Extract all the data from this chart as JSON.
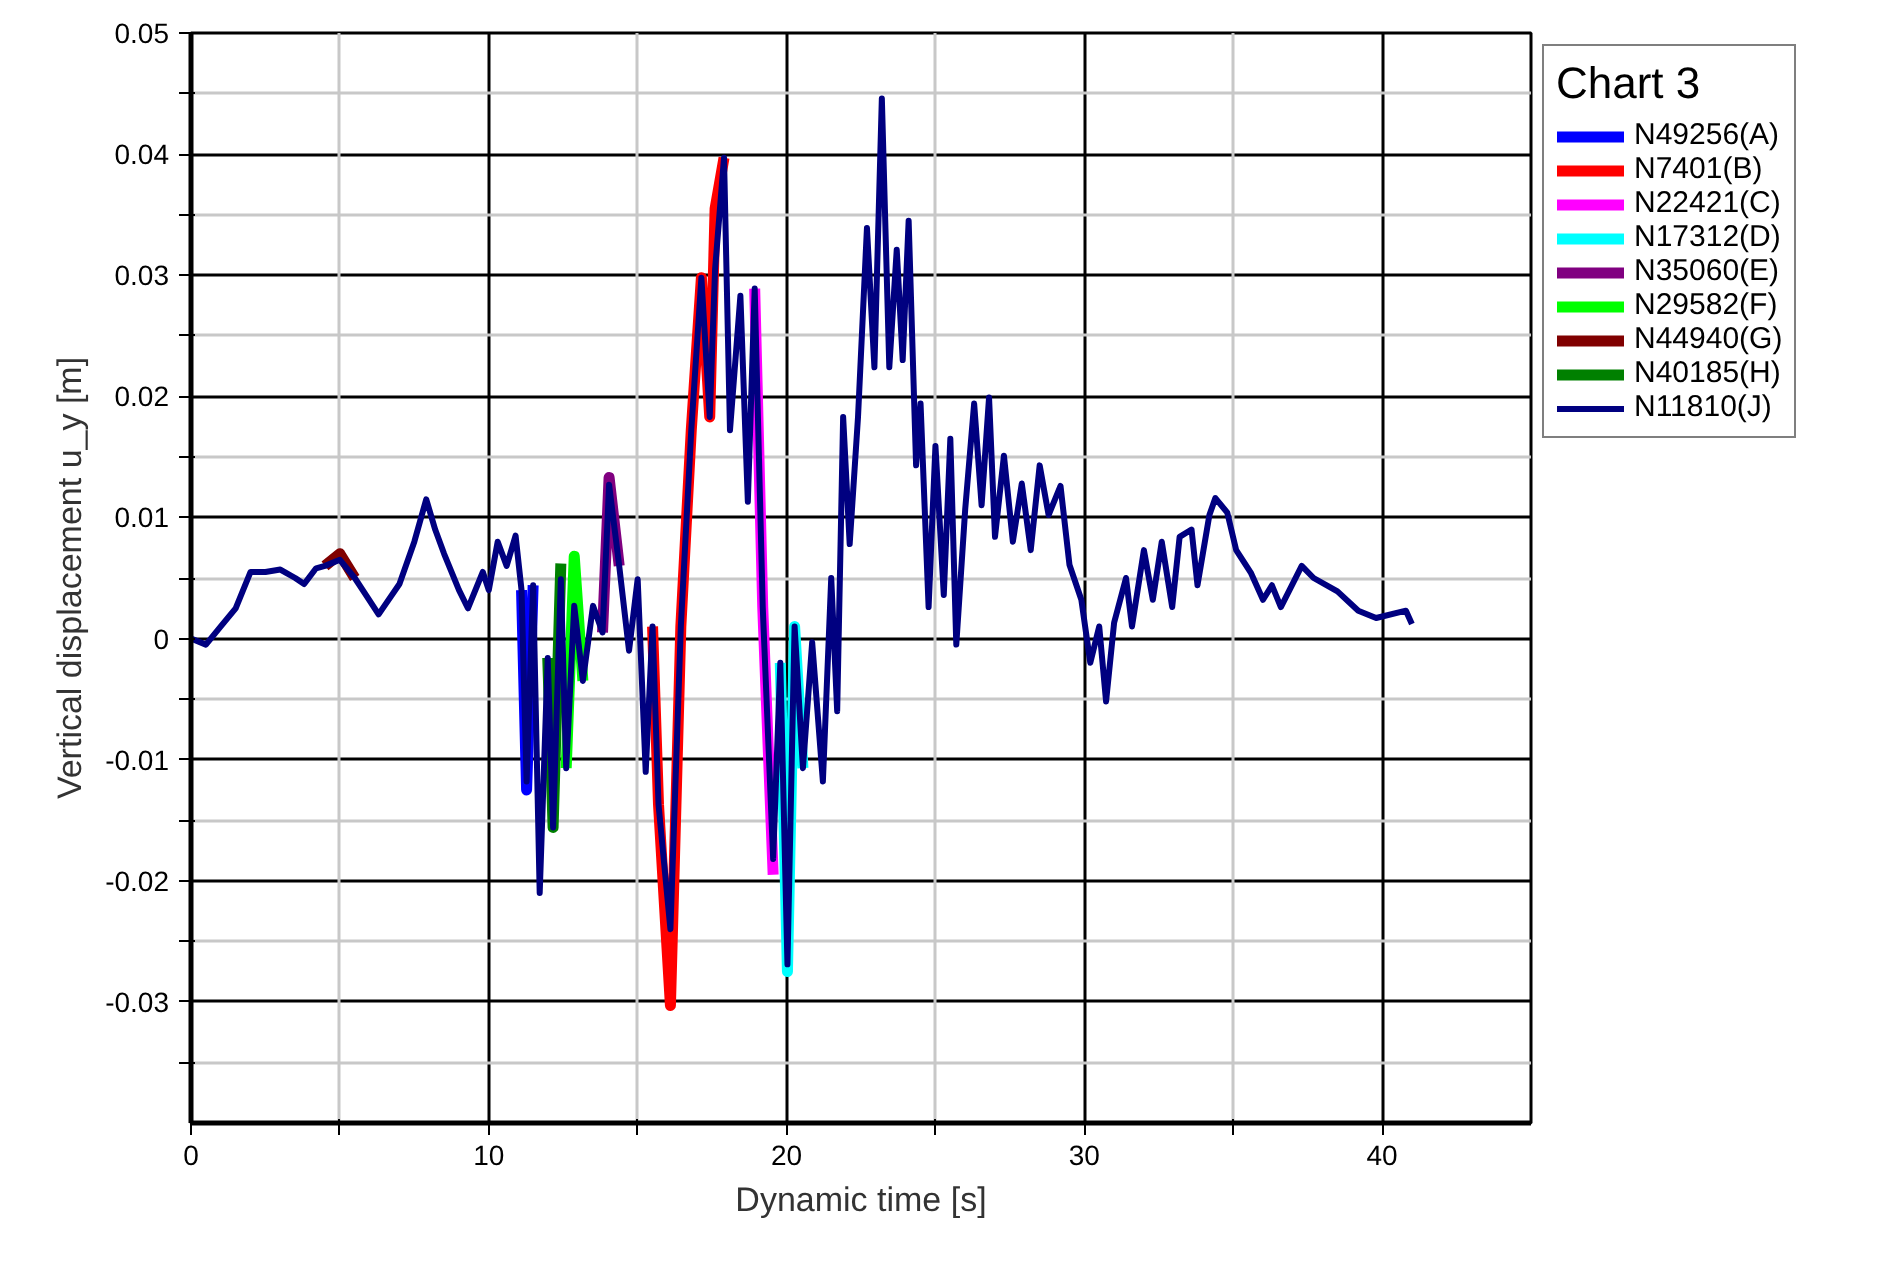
{
  "chart_data": {
    "type": "line",
    "xlabel": "Dynamic time [s]",
    "ylabel": "Vertical displacement u_y [m]",
    "legend_title": "Chart 3",
    "legend": "top right",
    "grid": true,
    "line_style": "solid",
    "xlim": [
      0,
      45
    ],
    "ylim": [
      -0.04,
      0.05
    ],
    "xticks": [
      0,
      {
        "value": 5,
        "label": null
      },
      10,
      {
        "value": 15,
        "label": null
      },
      20,
      {
        "value": 25,
        "label": null
      },
      30,
      {
        "value": 35,
        "label": null
      },
      40
    ],
    "yticks": [
      {
        "value": -0.035,
        "label": null
      },
      -0.03,
      {
        "value": -0.025,
        "label": null
      },
      -0.02,
      {
        "value": -0.015,
        "label": null
      },
      -0.01,
      {
        "value": -0.005,
        "label": null
      },
      0,
      {
        "value": 0.005,
        "label": null
      },
      0.01,
      {
        "value": 0.015,
        "label": null
      },
      0.02,
      {
        "value": 0.025,
        "label": null
      },
      0.03,
      {
        "value": 0.035,
        "label": null
      },
      0.04,
      {
        "value": 0.045,
        "label": null
      },
      0.05
    ],
    "x": [
      0,
      0.5,
      1,
      1.5,
      2,
      2.5,
      3,
      3.5,
      3.8,
      4.2,
      4.5,
      5,
      5.5,
      5.9,
      6.3,
      7,
      7.5,
      7.9,
      8.2,
      8.5,
      9,
      9.3,
      9.8,
      10,
      10.3,
      10.6,
      10.9,
      11.1,
      11.27,
      11.49,
      11.71,
      11.98,
      12.16,
      12.42,
      12.6,
      12.87,
      13.16,
      13.5,
      13.82,
      14.04,
      14.38,
      14.71,
      15,
      15.27,
      15.5,
      15.7,
      16.1,
      16.45,
      16.8,
      17.14,
      17.42,
      17.6,
      17.9,
      18.1,
      18.45,
      18.7,
      18.93,
      19.2,
      19.55,
      19.79,
      20.03,
      20.27,
      20.55,
      20.86,
      21.22,
      21.5,
      21.7,
      21.9,
      22.12,
      22.4,
      22.7,
      22.95,
      23.2,
      23.45,
      23.7,
      23.9,
      24.1,
      24.35,
      24.5,
      24.77,
      25,
      25.28,
      25.5,
      25.7,
      26,
      26.3,
      26.55,
      26.8,
      27,
      27.3,
      27.6,
      27.9,
      28.2,
      28.5,
      28.8,
      29.2,
      29.5,
      29.9,
      30.2,
      30.5,
      30.73,
      31,
      31.4,
      31.6,
      32,
      32.3,
      32.6,
      32.95,
      33.2,
      33.6,
      33.8,
      34.2,
      34.4,
      34.8,
      35.1,
      35.6,
      36,
      36.3,
      36.6,
      37.3,
      37.7,
      38.5,
      39.2,
      39.8,
      40.8,
      41
    ],
    "series": [
      {
        "name": "N49256(A)",
        "color": "#0000ff",
        "x": [
          11.1,
          11.27,
          11.49
        ],
        "values": [
          0.004,
          -0.0125,
          0.0044
        ]
      },
      {
        "name": "N7401(B)",
        "color": "#ff0000",
        "x": [
          15.5,
          15.7,
          16.1,
          16.45,
          16.8,
          17.14,
          17.42,
          17.6,
          17.9
        ],
        "values": [
          0.001,
          -0.0137,
          -0.0303,
          0.001,
          0.0172,
          0.0298,
          0.0183,
          0.0355,
          0.0397
        ]
      },
      {
        "name": "N22421(C)",
        "color": "#ff00ff",
        "x": [
          18.93,
          19.2,
          19.55
        ],
        "values": [
          0.0289,
          0.0026,
          -0.0195
        ]
      },
      {
        "name": "N17312(D)",
        "color": "#00ffff",
        "x": [
          19.79,
          20.03,
          20.27,
          20.55
        ],
        "values": [
          -0.002,
          -0.0275,
          0.001,
          -0.0107
        ]
      },
      {
        "name": "N35060(E)",
        "color": "#800080",
        "x": [
          13.82,
          14.04,
          14.38
        ],
        "values": [
          0.0005,
          0.0133,
          0.006
        ]
      },
      {
        "name": "N29582(F)",
        "color": "#00ff00",
        "x": [
          12.6,
          12.87,
          13.16
        ],
        "values": [
          -0.0107,
          0.0068,
          -0.0035
        ]
      },
      {
        "name": "N44940(G)",
        "color": "#800000",
        "x": [
          4.5,
          5,
          5.5
        ],
        "values": [
          0.006,
          0.007,
          0.005
        ]
      },
      {
        "name": "N40185(H)",
        "color": "#008000",
        "x": [
          11.98,
          12.16,
          12.42
        ],
        "values": [
          -0.0016,
          -0.0156,
          0.0062
        ]
      },
      {
        "name": "N11810(J)",
        "color": "#000080",
        "values": [
          0,
          -0.0005,
          0.001,
          0.0025,
          0.0055,
          0.0055,
          0.0057,
          0.005,
          0.0045,
          0.0058,
          0.006,
          0.0065,
          0.005,
          0.0035,
          0.002,
          0.0045,
          0.008,
          0.0115,
          0.009,
          0.007,
          0.004,
          0.0025,
          0.0055,
          0.004,
          0.008,
          0.006,
          0.0085,
          0.004,
          -0.0118,
          0.0044,
          -0.021,
          -0.0016,
          -0.0156,
          0.0049,
          -0.0107,
          0.0027,
          -0.0035,
          0.0027,
          0.0005,
          0.0127,
          0.006,
          -0.001,
          0.0049,
          -0.011,
          0.001,
          -0.0137,
          -0.024,
          0.001,
          0.0172,
          0.0298,
          0.0183,
          0.0305,
          0.0397,
          0.0172,
          0.0283,
          0.0113,
          0.0289,
          0.0026,
          -0.0182,
          -0.002,
          -0.0269,
          0.001,
          -0.0107,
          -0.0003,
          -0.0118,
          0.005,
          -0.006,
          0.0183,
          0.0078,
          0.0183,
          0.0339,
          0.0224,
          0.0446,
          0.0224,
          0.0321,
          0.023,
          0.0345,
          0.0143,
          0.0194,
          0.0026,
          0.0159,
          0.0036,
          0.0165,
          -0.0005,
          0.0107,
          0.0194,
          0.011,
          0.0199,
          0.0084,
          0.0151,
          0.008,
          0.0128,
          0.0073,
          0.0143,
          0.0102,
          0.0126,
          0.0061,
          0.0032,
          -0.002,
          0.001,
          -0.0052,
          0.0013,
          0.005,
          0.001,
          0.0073,
          0.0032,
          0.008,
          0.0026,
          0.0084,
          0.009,
          0.0044,
          0.0102,
          0.0116,
          0.0104,
          0.0073,
          0.0054,
          0.0032,
          0.0044,
          0.0026,
          0.006,
          0.005,
          0.0039,
          0.0023,
          0.0017,
          0.0023,
          0.0012
        ]
      }
    ]
  }
}
